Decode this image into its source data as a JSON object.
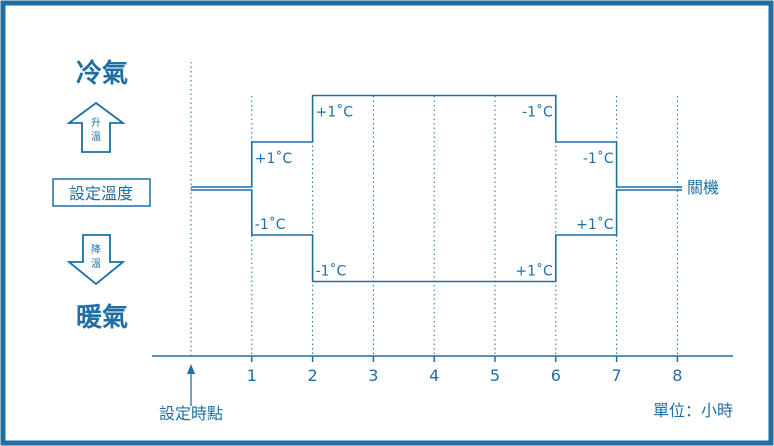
{
  "labels": {
    "cool_mode": "冷氣",
    "heat_mode": "暖氣",
    "raise_temp": "升溫",
    "lower_temp": "降溫",
    "set_temp": "設定溫度",
    "power_off": "關機",
    "set_time": "設定時點",
    "unit": "單位：小時"
  },
  "x_ticks": [
    "1",
    "2",
    "3",
    "4",
    "5",
    "6",
    "7",
    "8"
  ],
  "upper_step_labels": [
    "+1˚C",
    "+1˚C",
    "-1˚C",
    "-1˚C"
  ],
  "lower_step_labels": [
    "-1˚C",
    "-1˚C",
    "+1˚C",
    "+1˚C"
  ],
  "chart_data": {
    "type": "line",
    "xlabel": "單位：小時",
    "x_range": [
      0,
      8
    ],
    "series": [
      {
        "x": [
          0,
          1,
          1,
          2,
          2,
          6,
          6,
          7,
          7,
          8
        ],
        "y": [
          0,
          0,
          1,
          1,
          2,
          2,
          1,
          1,
          0,
          0
        ]
      },
      {
        "x": [
          0,
          1,
          1,
          2,
          2,
          6,
          6,
          7,
          7,
          8
        ],
        "y": [
          0,
          0,
          -1,
          -1,
          -2,
          -2,
          -1,
          -1,
          0,
          0
        ]
      }
    ],
    "annotations": {
      "upper_changes": [
        "+1˚C",
        "+1˚C",
        "-1˚C",
        "-1˚C"
      ],
      "lower_changes": [
        "-1˚C",
        "-1˚C",
        "+1˚C",
        "+1˚C"
      ],
      "start_marker": "設定時點",
      "end_marker": "關機"
    }
  },
  "colors": {
    "ink": "#1f6fa5",
    "frame": "#1f6fa5",
    "background": "#ffffff"
  }
}
